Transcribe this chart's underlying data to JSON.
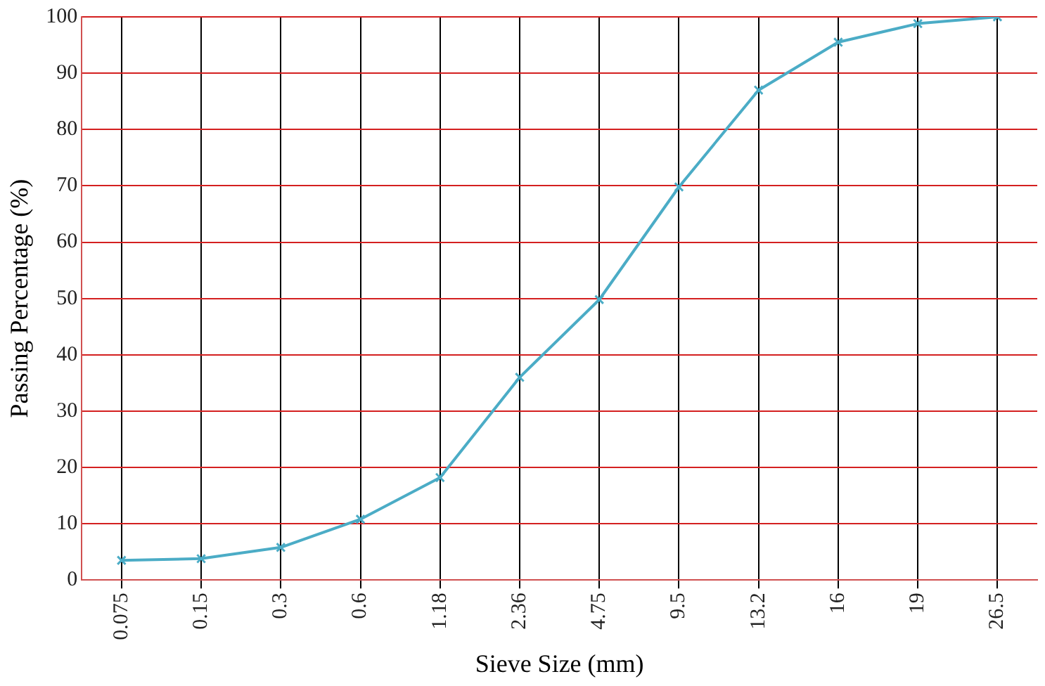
{
  "chart_data": {
    "type": "line",
    "xlabel": "Sieve Size (mm)",
    "ylabel": "Passing Percentage (%)",
    "categories": [
      "0.075",
      "0.15",
      "0.3",
      "0.6",
      "1.18",
      "2.36",
      "4.75",
      "9.5",
      "13.2",
      "16",
      "19",
      "26.5"
    ],
    "series": [
      {
        "color": "#4bacc6",
        "values": [
          3.5,
          3.8,
          5.8,
          10.8,
          18.2,
          36,
          49.8,
          69.8,
          87,
          95.5,
          98.8,
          100
        ]
      }
    ],
    "ylim": [
      0,
      100
    ],
    "yticks": [
      0,
      10,
      20,
      30,
      40,
      50,
      60,
      70,
      80,
      90,
      100
    ],
    "grid": true,
    "legend": false,
    "marker": "cross",
    "line_style": "solid"
  }
}
